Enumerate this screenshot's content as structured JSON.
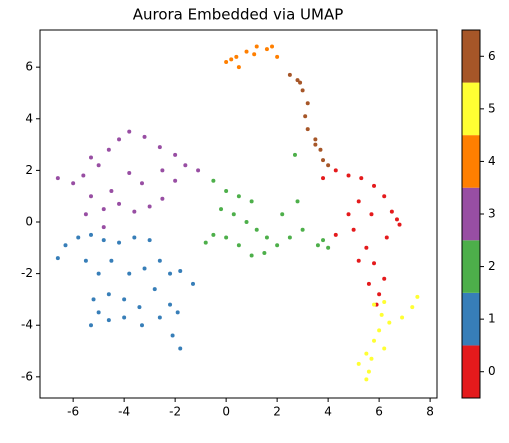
{
  "chart_data": {
    "type": "scatter",
    "title": "Aurora Embedded via UMAP",
    "xlim": [
      -7.3,
      8.27
    ],
    "ylim": [
      -6.82,
      7.44
    ],
    "xticks": [
      -6,
      -4,
      -2,
      0,
      2,
      4,
      6,
      8
    ],
    "yticks": [
      -6,
      -4,
      -2,
      0,
      2,
      4,
      6
    ],
    "series": [
      {
        "name": "0",
        "color": "#e41a1c",
        "x": [
          3.8,
          4.3,
          4.8,
          5.3,
          5.8,
          6.2,
          6.5,
          6.8,
          5.2,
          5.7,
          6.3,
          5,
          5.5,
          5.2,
          5.8,
          6.2,
          5.6,
          6,
          5.9,
          4.8,
          4.3,
          6.7
        ],
        "values": [
          1.7,
          2,
          1.8,
          1.7,
          1.4,
          1,
          0.4,
          -0.1,
          0.8,
          0.3,
          -0.6,
          -0.3,
          -1,
          -1.5,
          -1.6,
          -2.2,
          -2.4,
          -2.8,
          -3.2,
          0.3,
          -0.5,
          0.1
        ]
      },
      {
        "name": "1",
        "color": "#377eb8",
        "x": [
          -6.6,
          -6.3,
          -5.8,
          -5.3,
          -4.8,
          -4.2,
          -3.6,
          -3,
          -5.5,
          -5,
          -4.5,
          -3.8,
          -3.2,
          -2.6,
          -2.2,
          -1.8,
          -5.2,
          -4.6,
          -4,
          -3.4,
          -2.8,
          -2.2,
          -5.3,
          -4.6,
          -4,
          -3.3,
          -2.6,
          -1.9,
          -1.8,
          -2.1,
          -5,
          -1.3
        ],
        "values": [
          -1.4,
          -0.9,
          -0.6,
          -0.5,
          -0.7,
          -0.8,
          -0.6,
          -0.7,
          -1.5,
          -2,
          -1.5,
          -2,
          -1.8,
          -1.5,
          -2,
          -1.9,
          -3,
          -2.8,
          -3,
          -3.3,
          -2.6,
          -3.2,
          -4,
          -3.8,
          -3.7,
          -4,
          -3.7,
          -3.5,
          -4.9,
          -4.4,
          -3.5,
          -2.4
        ]
      },
      {
        "name": "2",
        "color": "#4daf4a",
        "x": [
          -0.5,
          0,
          0.5,
          1,
          -0.2,
          0.3,
          0.8,
          1.2,
          1.6,
          2,
          2.5,
          3,
          3.6,
          4,
          -0.5,
          -0.8,
          0,
          0.5,
          1,
          1.5,
          2.2,
          2.8,
          2.7,
          3.8
        ],
        "values": [
          1.6,
          1.2,
          1,
          0.8,
          0.5,
          0.3,
          0,
          -0.3,
          -0.6,
          -0.9,
          -0.6,
          -0.3,
          -0.9,
          -1,
          -0.5,
          -0.8,
          -0.6,
          -0.9,
          -1.3,
          -1.2,
          0.3,
          0.8,
          2.6,
          -0.7
        ]
      },
      {
        "name": "3",
        "color": "#984ea3",
        "x": [
          -6.6,
          -6,
          -5.6,
          -5.3,
          -5,
          -4.6,
          -4.2,
          -3.8,
          -3.2,
          -2.6,
          -2,
          -1.6,
          -1.1,
          -5.3,
          -4.8,
          -4.2,
          -3.6,
          -3,
          -2.5,
          -3.3,
          -3.8,
          -4.5,
          -5.5,
          -4.8,
          -2.5,
          -2
        ],
        "values": [
          1.7,
          1.5,
          1.8,
          2.5,
          2.2,
          2.8,
          3.2,
          3.5,
          3.3,
          2.9,
          2.6,
          2.2,
          2,
          1,
          0.5,
          0.7,
          0.4,
          0.6,
          0.9,
          1.5,
          1.9,
          1.2,
          0.3,
          -0.2,
          2,
          1.6
        ]
      },
      {
        "name": "4",
        "color": "#ff7f00",
        "x": [
          0,
          0.4,
          0.8,
          1.2,
          1.6,
          2,
          0.5,
          1.1,
          1.8,
          0.2
        ],
        "values": [
          6.2,
          6.4,
          6.6,
          6.8,
          6.7,
          6.4,
          6,
          6.5,
          6.8,
          6.3
        ]
      },
      {
        "name": "5",
        "color": "#ffff33",
        "x": [
          5.8,
          6.1,
          6,
          5.8,
          6.2,
          5.5,
          5.2,
          5.7,
          5.6,
          5.5,
          6.4,
          7.3,
          7.5,
          6.9,
          6.2
        ],
        "values": [
          -3.2,
          -3.6,
          -4.2,
          -4.6,
          -4.9,
          -5.1,
          -5.5,
          -5.3,
          -5.8,
          -6.1,
          -3.9,
          -3.3,
          -2.9,
          -3.7,
          -3.1
        ]
      },
      {
        "name": "6",
        "color": "#a65628",
        "x": [
          2.5,
          2.8,
          3,
          3.2,
          3.1,
          3.2,
          3.5,
          3.7,
          3.8,
          4,
          3.5,
          2.9
        ],
        "values": [
          5.7,
          5.5,
          5.1,
          4.6,
          4.1,
          3.6,
          3.2,
          2.8,
          2.4,
          2.2,
          3,
          5.4
        ]
      }
    ]
  }
}
